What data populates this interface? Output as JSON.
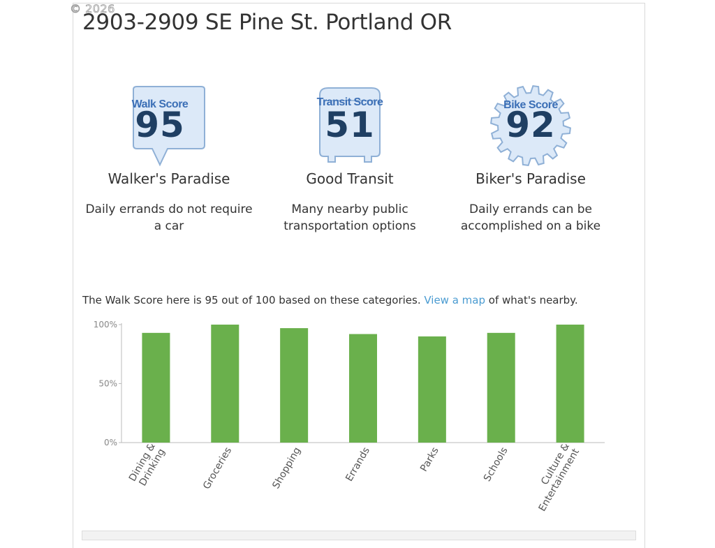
{
  "copyright": "© 2026",
  "address": "2903-2909 SE Pine St. Portland OR",
  "scores": [
    {
      "badge": "Walk Score",
      "value": "95",
      "title": "Walker's Paradise",
      "desc": "Daily errands do not require a car"
    },
    {
      "badge": "Transit Score",
      "value": "51",
      "title": "Good Transit",
      "desc": "Many nearby public transportation options"
    },
    {
      "badge": "Bike Score",
      "value": "92",
      "title": "Biker's Paradise",
      "desc": "Daily errands can be accomplished on a bike"
    }
  ],
  "summary": {
    "before": "The Walk Score here is 95 out of 100 based on these categories. ",
    "link": "View a map",
    "after": " of what's nearby."
  },
  "colors": {
    "bar": "#6ab04c",
    "badge_fill": "#dce9f8",
    "badge_stroke": "#8fb0d6"
  },
  "chart_data": {
    "type": "bar",
    "categories": [
      "Dining & Drinking",
      "Groceries",
      "Shopping",
      "Errands",
      "Parks",
      "Schools",
      "Culture & Entertainment"
    ],
    "values": [
      93,
      100,
      97,
      92,
      90,
      93,
      100
    ],
    "ylim": [
      0,
      100
    ],
    "yticks": [
      "0%",
      "50%",
      "100%"
    ],
    "grid": false
  }
}
